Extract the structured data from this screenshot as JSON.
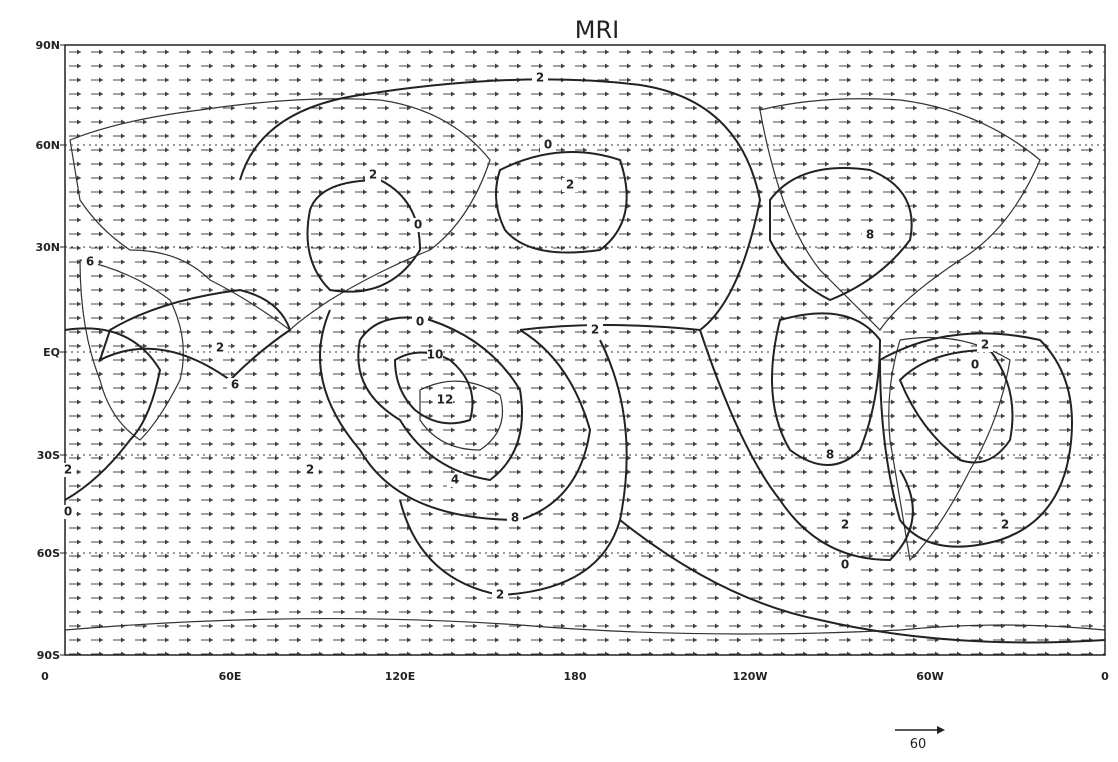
{
  "title": "MRI",
  "lat_labels": [
    "90N",
    "60N",
    "30N",
    "EQ",
    "30S",
    "60S",
    "90S"
  ],
  "lon_labels": [
    "0",
    "60E",
    "120E",
    "180",
    "120W",
    "60W",
    "0"
  ],
  "contour_labels": [
    "2",
    "2",
    "0",
    "2",
    "0",
    "6",
    "8",
    "2",
    "6",
    "2",
    "0",
    "10",
    "12",
    "4",
    "2",
    "8",
    "2",
    "0",
    "2",
    "0",
    "8",
    "2",
    "0",
    "2",
    "2"
  ],
  "reference_vector": {
    "label": "60"
  }
}
